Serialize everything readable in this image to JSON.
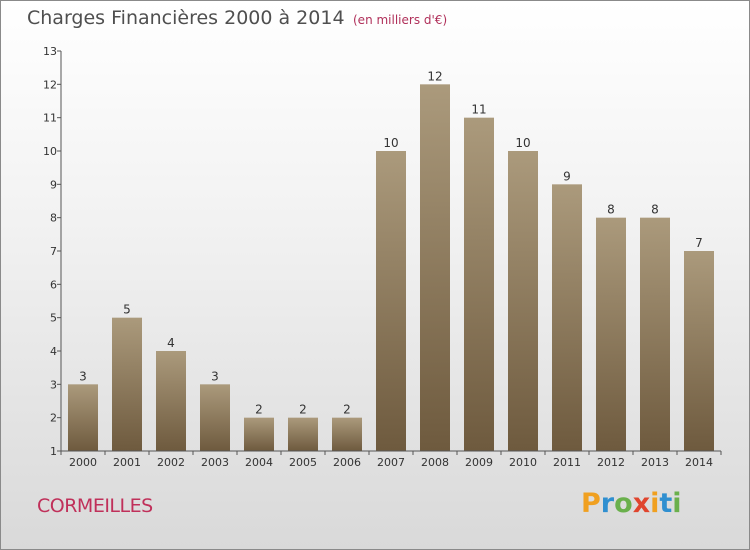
{
  "header": {
    "title": "Charges Financières 2000 à 2014",
    "subtitle": "(en milliers d'€)"
  },
  "footer": {
    "commune": "CORMEILLES",
    "logo_text": "Proxiti",
    "logo_letters": [
      {
        "ch": "P",
        "color": "#f0a020"
      },
      {
        "ch": "r",
        "color": "#2f8fd0"
      },
      {
        "ch": "o",
        "color": "#6ab04c"
      },
      {
        "ch": "x",
        "color": "#e0452e"
      },
      {
        "ch": "i",
        "color": "#f0a020"
      },
      {
        "ch": "t",
        "color": "#2f8fd0"
      },
      {
        "ch": "i",
        "color": "#6ab04c"
      }
    ]
  },
  "colors": {
    "bar_top": "#ab9a7c",
    "bar_bottom": "#6e5a3e",
    "axis": "#555555",
    "label": "#333333"
  },
  "chart_data": {
    "type": "bar",
    "title": "Charges Financières 2000 à 2014",
    "subtitle": "(en milliers d'€)",
    "categories": [
      "2000",
      "2001",
      "2002",
      "2003",
      "2004",
      "2005",
      "2006",
      "2007",
      "2008",
      "2009",
      "2010",
      "2011",
      "2012",
      "2013",
      "2014"
    ],
    "values": [
      3,
      5,
      4,
      3,
      2,
      2,
      2,
      10,
      12,
      11,
      10,
      9,
      8,
      8,
      7
    ],
    "ylim": [
      1,
      13
    ],
    "yticks": [
      1,
      2,
      3,
      4,
      5,
      6,
      7,
      8,
      9,
      10,
      11,
      12,
      13
    ],
    "grid": false,
    "legend": "none",
    "data_labels": true
  }
}
